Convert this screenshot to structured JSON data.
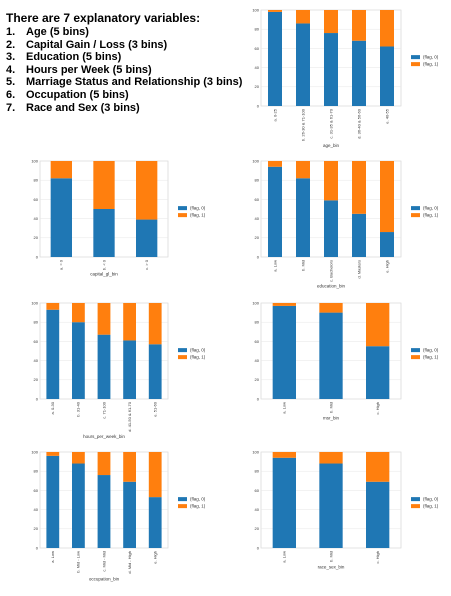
{
  "intro": {
    "title": "There are 7 explanatory variables:",
    "items": [
      {
        "num": "1.",
        "text": "Age (5 bins)"
      },
      {
        "num": "2.",
        "text": "Capital Gain / Loss (3 bins)"
      },
      {
        "num": "3.",
        "text": "Education (5 bins)"
      },
      {
        "num": "4.",
        "text": "Hours per Week (5 bins)"
      },
      {
        "num": "5.",
        "text": "Marriage Status and Relationship (3 bins)"
      },
      {
        "num": "6.",
        "text": "Occupation (5 bins)"
      },
      {
        "num": "7.",
        "text": "Race and Sex (3 bins)"
      }
    ]
  },
  "colors": {
    "flag0": "#1f77b4",
    "flag1": "#ff7f0e",
    "grid": "#e6e6e6",
    "frame": "#cccccc"
  },
  "chart_data": [
    {
      "id": "age",
      "type": "bar",
      "stacked": true,
      "xlabel": "age_bin",
      "categories": [
        "a. 0-25",
        "b. 26-30 & 71-100",
        "c. 31-35 & 61-70",
        "d. 36-40 & 56-60",
        "e. 40-55"
      ],
      "series": [
        {
          "name": "(flag, 0)",
          "values": [
            98,
            86,
            76,
            68,
            62
          ]
        },
        {
          "name": "(flag, 1)",
          "values": [
            2,
            14,
            24,
            32,
            38
          ]
        }
      ],
      "ylim": [
        0,
        100
      ],
      "yticks": [
        0,
        20,
        40,
        60,
        80,
        100
      ],
      "grid": true,
      "legend": "right"
    },
    {
      "id": "capital",
      "type": "bar",
      "stacked": true,
      "xlabel": "capital_gl_bin",
      "categories": [
        "a. = 0",
        "b. < 0",
        "c. > 0"
      ],
      "series": [
        {
          "name": "(flag, 0)",
          "values": [
            82,
            50,
            39
          ]
        },
        {
          "name": "(flag, 1)",
          "values": [
            18,
            50,
            61
          ]
        }
      ],
      "ylim": [
        0,
        100
      ],
      "yticks": [
        0,
        20,
        40,
        60,
        80,
        100
      ],
      "grid": true,
      "legend": "right"
    },
    {
      "id": "education",
      "type": "bar",
      "stacked": true,
      "xlabel": "education_bin",
      "categories": [
        "a. Low",
        "b. Mid",
        "c. Bachelors",
        "d. Masters",
        "e. High"
      ],
      "series": [
        {
          "name": "(flag, 0)",
          "values": [
            94,
            82,
            59,
            45,
            26
          ]
        },
        {
          "name": "(flag, 1)",
          "values": [
            6,
            18,
            41,
            55,
            74
          ]
        }
      ],
      "ylim": [
        0,
        100
      ],
      "yticks": [
        0,
        20,
        40,
        60,
        80,
        100
      ],
      "grid": true,
      "legend": "right"
    },
    {
      "id": "hours",
      "type": "bar",
      "stacked": true,
      "xlabel": "hours_per_week_bin",
      "categories": [
        "a. 0-30",
        "b. 31-40",
        "c. 71-100",
        "d. 41-50 & 61-70",
        "e. 51-60"
      ],
      "series": [
        {
          "name": "(flag, 0)",
          "values": [
            93,
            80,
            67,
            61,
            57
          ]
        },
        {
          "name": "(flag, 1)",
          "values": [
            7,
            20,
            33,
            39,
            43
          ]
        }
      ],
      "ylim": [
        0,
        100
      ],
      "yticks": [
        0,
        20,
        40,
        60,
        80,
        100
      ],
      "grid": true,
      "legend": "right"
    },
    {
      "id": "msr",
      "type": "bar",
      "stacked": true,
      "xlabel": "msr_bin",
      "categories": [
        "a. Low",
        "b. Mid",
        "c. High"
      ],
      "series": [
        {
          "name": "(flag, 0)",
          "values": [
            97,
            90,
            55
          ]
        },
        {
          "name": "(flag, 1)",
          "values": [
            3,
            10,
            45
          ]
        }
      ],
      "ylim": [
        0,
        100
      ],
      "yticks": [
        0,
        20,
        40,
        60,
        80,
        100
      ],
      "grid": true,
      "legend": "right"
    },
    {
      "id": "occupation",
      "type": "bar",
      "stacked": true,
      "xlabel": "occupation_bin",
      "categories": [
        "a. Low",
        "b. Mid - Low",
        "c. Mid - Mid",
        "d. Mid - High",
        "e. High"
      ],
      "series": [
        {
          "name": "(flag, 0)",
          "values": [
            96,
            88,
            76,
            69,
            53
          ]
        },
        {
          "name": "(flag, 1)",
          "values": [
            4,
            12,
            24,
            31,
            47
          ]
        }
      ],
      "ylim": [
        0,
        100
      ],
      "yticks": [
        0,
        20,
        40,
        60,
        80,
        100
      ],
      "grid": true,
      "legend": "right"
    },
    {
      "id": "race_sex",
      "type": "bar",
      "stacked": true,
      "xlabel": "race_sex_bin",
      "categories": [
        "a. Low",
        "b. Mid",
        "c. High"
      ],
      "series": [
        {
          "name": "(flag, 0)",
          "values": [
            94,
            88,
            69
          ]
        },
        {
          "name": "(flag, 1)",
          "values": [
            6,
            12,
            31
          ]
        }
      ],
      "ylim": [
        0,
        100
      ],
      "yticks": [
        0,
        20,
        40,
        60,
        80,
        100
      ],
      "grid": true,
      "legend": "right"
    }
  ]
}
